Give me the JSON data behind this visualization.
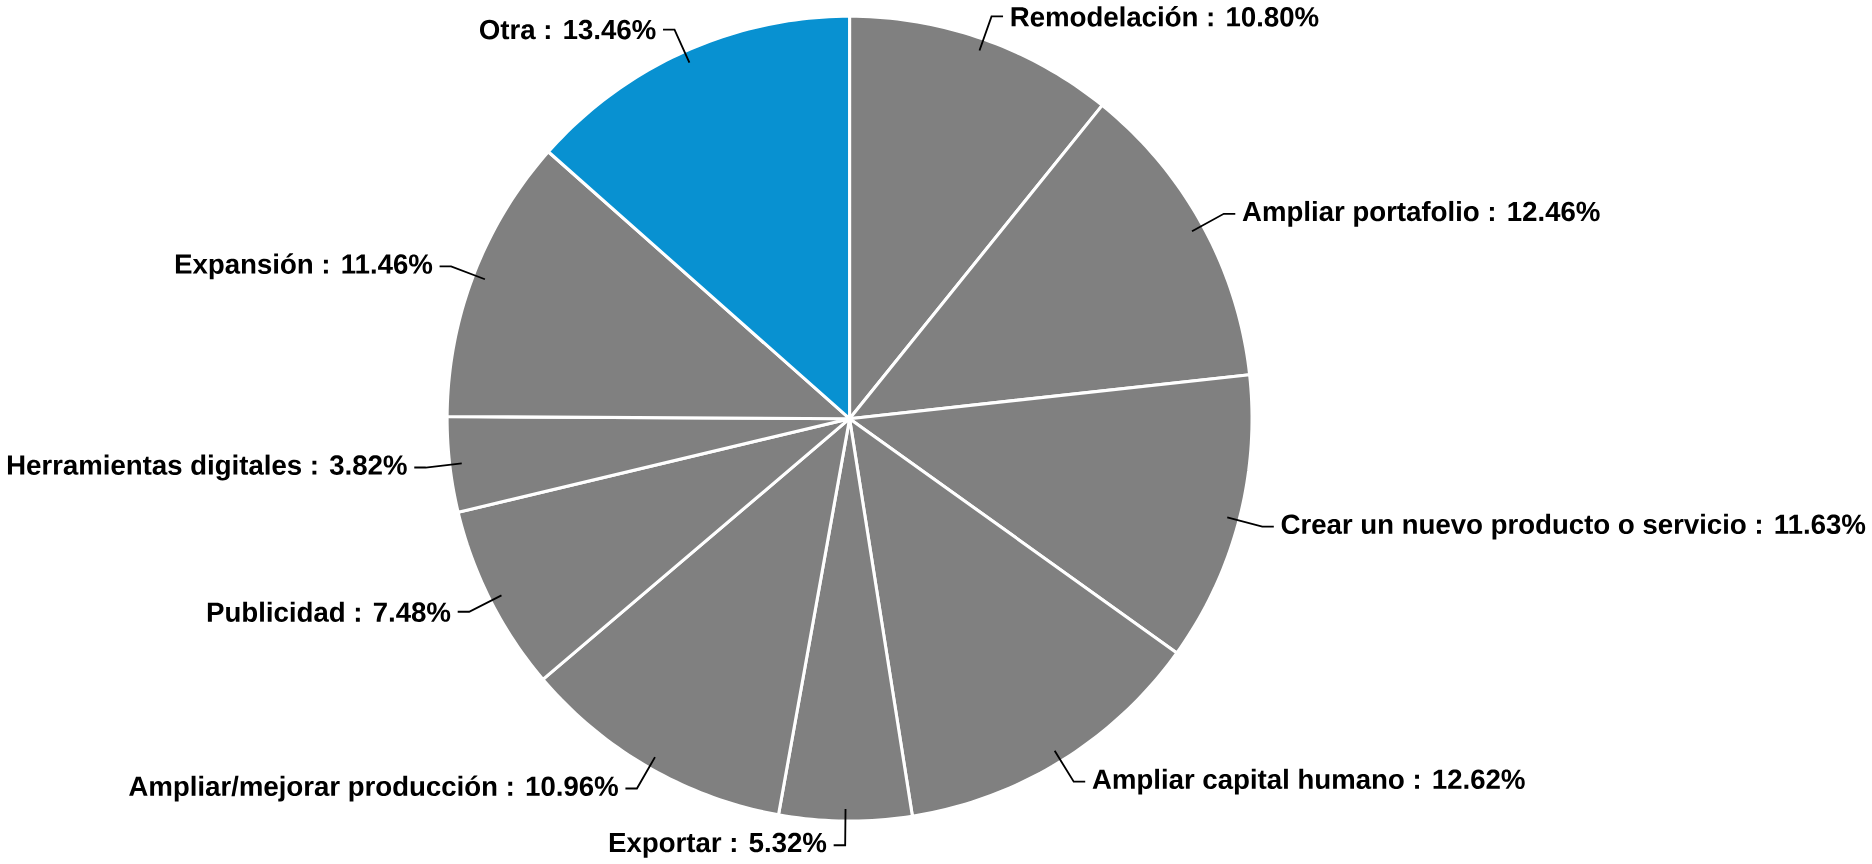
{
  "chart_data": {
    "type": "pie",
    "categories": [
      "Remodelación : 10.80%",
      "Ampliar portafolio : 12.46%",
      "Crear un nuevo producto o servicio : 11.63%",
      "Ampliar capital humano : 12.62%",
      "Exportar : 5.32%",
      "Ampliar/mejorar producción : 10.96%",
      "Publicidad : 7.48%",
      "Herramientas digitales : 3.82%",
      "Expansión : 11.46%",
      "Otra : 13.46%"
    ],
    "values": [
      10.8,
      12.46,
      11.63,
      12.62,
      5.32,
      10.96,
      7.48,
      3.82,
      11.46,
      13.46
    ],
    "colors": [
      "#808080",
      "#808080",
      "#808080",
      "#808080",
      "#808080",
      "#808080",
      "#808080",
      "#808080",
      "#808080",
      "#0891d1"
    ]
  }
}
